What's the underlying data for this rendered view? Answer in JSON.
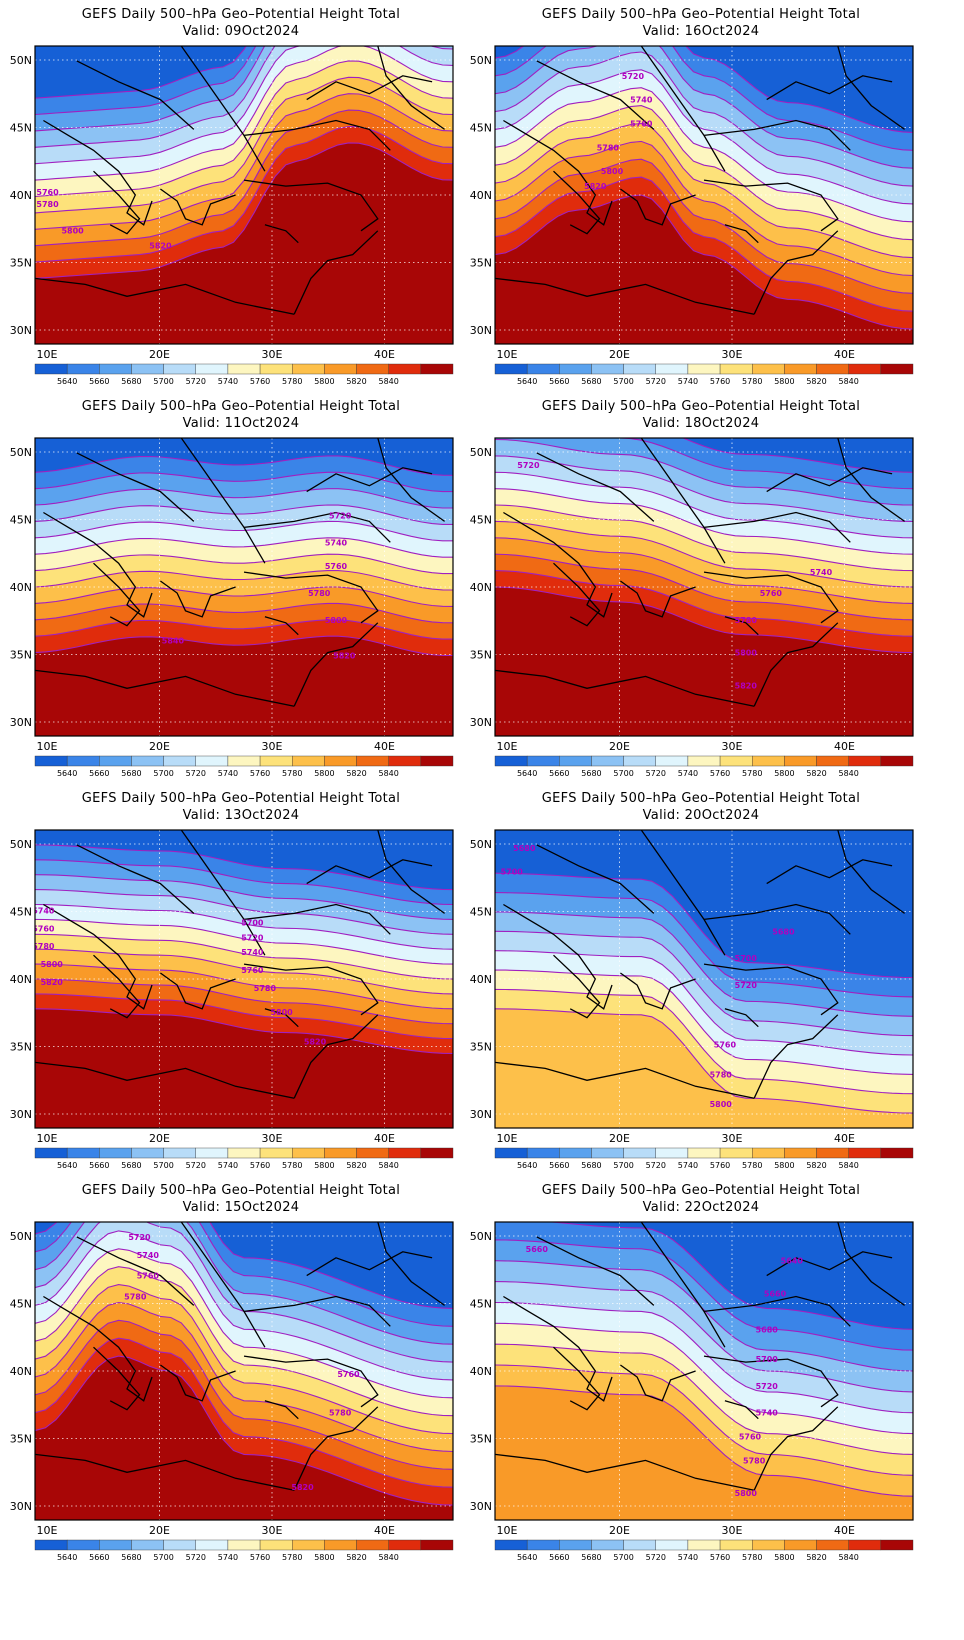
{
  "title_line": "GEFS Daily 500–hPa Geo–Potential Height Total",
  "valid_prefix": "Valid: ",
  "lon_ticks": [
    "10E",
    "20E",
    "30E",
    "40E"
  ],
  "lat_ticks": [
    "50N",
    "45N",
    "40N",
    "35N",
    "30N"
  ],
  "legend": {
    "colors": [
      "#1660d6",
      "#3a84e8",
      "#5aa2ee",
      "#8cc2f4",
      "#b8dcf8",
      "#e0f5fd",
      "#fdf6c0",
      "#fde27a",
      "#fdc04a",
      "#f99a28",
      "#f06a14",
      "#e02c0c",
      "#a80606"
    ],
    "labels": [
      "5640",
      "5660",
      "5680",
      "5700",
      "5720",
      "5740",
      "5760",
      "5780",
      "5800",
      "5820",
      "5840"
    ]
  },
  "contour_color": "#a020c0",
  "panels": [
    {
      "valid": "09Oct2024",
      "labels": [
        [
          "5760",
          0.03,
          0.5
        ],
        [
          "5780",
          0.03,
          0.54
        ],
        [
          "5800",
          0.09,
          0.63
        ],
        [
          "5820",
          0.3,
          0.68
        ]
      ]
    },
    {
      "valid": "16Oct2024",
      "labels": [
        [
          "5720",
          0.33,
          0.11
        ],
        [
          "5740",
          0.35,
          0.19
        ],
        [
          "5760",
          0.35,
          0.27
        ],
        [
          "5780",
          0.27,
          0.35
        ],
        [
          "5800",
          0.28,
          0.43
        ],
        [
          "5820",
          0.24,
          0.48
        ]
      ]
    },
    {
      "valid": "11Oct2024",
      "labels": [
        [
          "5720",
          0.73,
          0.27
        ],
        [
          "5740",
          0.72,
          0.36
        ],
        [
          "5760",
          0.72,
          0.44
        ],
        [
          "5780",
          0.68,
          0.53
        ],
        [
          "5800",
          0.72,
          0.62
        ],
        [
          "5820",
          0.74,
          0.74
        ],
        [
          "5840",
          0.33,
          0.69
        ]
      ]
    },
    {
      "valid": "18Oct2024",
      "labels": [
        [
          "5720",
          0.08,
          0.1
        ],
        [
          "5740",
          0.78,
          0.46
        ],
        [
          "5760",
          0.66,
          0.53
        ],
        [
          "5780",
          0.6,
          0.62
        ],
        [
          "5800",
          0.6,
          0.73
        ],
        [
          "5820",
          0.6,
          0.84
        ]
      ]
    },
    {
      "valid": "13Oct2024",
      "labels": [
        [
          "5740",
          0.02,
          0.28
        ],
        [
          "5760",
          0.02,
          0.34
        ],
        [
          "5780",
          0.02,
          0.4
        ],
        [
          "5800",
          0.04,
          0.46
        ],
        [
          "5820",
          0.04,
          0.52
        ],
        [
          "5700",
          0.52,
          0.32
        ],
        [
          "5720",
          0.52,
          0.37
        ],
        [
          "5740",
          0.52,
          0.42
        ],
        [
          "5760",
          0.52,
          0.48
        ],
        [
          "5780",
          0.55,
          0.54
        ],
        [
          "5800",
          0.59,
          0.62
        ],
        [
          "5820",
          0.67,
          0.72
        ]
      ]
    },
    {
      "valid": "20Oct2024",
      "labels": [
        [
          "5680",
          0.07,
          0.07
        ],
        [
          "5700",
          0.04,
          0.15
        ],
        [
          "5680",
          0.69,
          0.35
        ],
        [
          "5700",
          0.6,
          0.44
        ],
        [
          "5720",
          0.6,
          0.53
        ],
        [
          "5760",
          0.55,
          0.73
        ],
        [
          "5780",
          0.54,
          0.83
        ],
        [
          "5800",
          0.54,
          0.93
        ]
      ]
    },
    {
      "valid": "15Oct2024",
      "labels": [
        [
          "5720",
          0.25,
          0.06
        ],
        [
          "5740",
          0.27,
          0.12
        ],
        [
          "5760",
          0.27,
          0.19
        ],
        [
          "5780",
          0.24,
          0.26
        ],
        [
          "5760",
          0.75,
          0.52
        ],
        [
          "5780",
          0.73,
          0.65
        ],
        [
          "5820",
          0.64,
          0.9
        ]
      ]
    },
    {
      "valid": "22Oct2024",
      "labels": [
        [
          "5660",
          0.1,
          0.1
        ],
        [
          "5640",
          0.71,
          0.14
        ],
        [
          "5660",
          0.67,
          0.25
        ],
        [
          "5680",
          0.65,
          0.37
        ],
        [
          "5700",
          0.65,
          0.47
        ],
        [
          "5720",
          0.65,
          0.56
        ],
        [
          "5740",
          0.65,
          0.65
        ],
        [
          "5760",
          0.61,
          0.73
        ],
        [
          "5780",
          0.62,
          0.81
        ],
        [
          "5800",
          0.6,
          0.92
        ]
      ]
    }
  ]
}
